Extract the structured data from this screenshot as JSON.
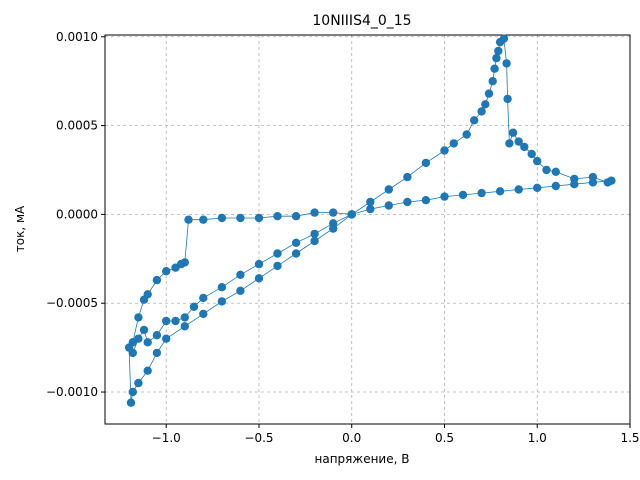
{
  "chart_data": {
    "type": "scatter",
    "title": "10NIIIS4_0_15",
    "xlabel": "напряжение, В",
    "ylabel": "ток, мА",
    "xlim": [
      -1.33,
      1.5
    ],
    "ylim": [
      -0.00118,
      0.00101
    ],
    "xticks": [
      -1.0,
      -0.5,
      0.0,
      0.5,
      1.0,
      1.5
    ],
    "xtick_labels": [
      "−1.0",
      "−0.5",
      "0.0",
      "0.5",
      "1.0",
      "1.5"
    ],
    "yticks": [
      -0.001,
      -0.0005,
      0.0,
      0.0005,
      0.001
    ],
    "ytick_labels": [
      "−0.0010",
      "−0.0005",
      "0.0000",
      "0.0005",
      "0.0010"
    ],
    "grid": true,
    "color": "#1f77b4",
    "marker": "circle with connecting line",
    "series": [
      {
        "values_xy": [
          [
            0.0,
            0.0
          ],
          [
            0.1,
            3e-05
          ],
          [
            0.2,
            5e-05
          ],
          [
            0.3,
            7e-05
          ],
          [
            0.4,
            8e-05
          ],
          [
            0.5,
            0.0001
          ],
          [
            0.6,
            0.00011
          ],
          [
            0.7,
            0.00012
          ],
          [
            0.8,
            0.00013
          ],
          [
            0.9,
            0.00014
          ],
          [
            1.0,
            0.00015
          ],
          [
            1.1,
            0.00016
          ],
          [
            1.2,
            0.00017
          ],
          [
            1.3,
            0.00018
          ],
          [
            1.4,
            0.00019
          ],
          [
            1.38,
            0.00018
          ],
          [
            1.3,
            0.00021
          ],
          [
            1.2,
            0.0002
          ],
          [
            1.1,
            0.00024
          ],
          [
            1.05,
            0.00025
          ],
          [
            1.0,
            0.0003
          ],
          [
            0.97,
            0.00034
          ],
          [
            0.93,
            0.00038
          ],
          [
            0.9,
            0.00041
          ],
          [
            0.87,
            0.00046
          ],
          [
            0.85,
            0.0004
          ],
          [
            0.84,
            0.00065
          ],
          [
            0.835,
            0.00085
          ],
          [
            0.82,
            0.00099
          ],
          [
            0.8,
            0.00097
          ],
          [
            0.79,
            0.00092
          ],
          [
            0.78,
            0.00088
          ],
          [
            0.77,
            0.00082
          ],
          [
            0.76,
            0.00075
          ],
          [
            0.74,
            0.00068
          ],
          [
            0.72,
            0.00062
          ],
          [
            0.7,
            0.00058
          ],
          [
            0.66,
            0.00053
          ],
          [
            0.62,
            0.00045
          ],
          [
            0.55,
            0.0004
          ],
          [
            0.5,
            0.00036
          ],
          [
            0.4,
            0.00029
          ],
          [
            0.3,
            0.00021
          ],
          [
            0.2,
            0.00014
          ],
          [
            0.1,
            7e-05
          ],
          [
            0.0,
            0.0
          ],
          [
            -0.1,
            -8e-05
          ],
          [
            -0.2,
            -0.00015
          ],
          [
            -0.3,
            -0.00022
          ],
          [
            -0.4,
            -0.00029
          ],
          [
            -0.5,
            -0.00036
          ],
          [
            -0.6,
            -0.00043
          ],
          [
            -0.7,
            -0.00049
          ],
          [
            -0.8,
            -0.00056
          ],
          [
            -0.9,
            -0.00063
          ],
          [
            -1.0,
            -0.0007
          ],
          [
            -1.05,
            -0.00078
          ],
          [
            -1.1,
            -0.00088
          ],
          [
            -1.15,
            -0.00095
          ],
          [
            -1.18,
            -0.001
          ],
          [
            -1.19,
            -0.00106
          ],
          [
            -1.2,
            -0.00075
          ],
          [
            -1.18,
            -0.00078
          ],
          [
            -1.15,
            -0.0007
          ],
          [
            -1.12,
            -0.00065
          ],
          [
            -1.1,
            -0.00072
          ],
          [
            -1.05,
            -0.00068
          ],
          [
            -1.0,
            -0.0006
          ],
          [
            -0.95,
            -0.0006
          ],
          [
            -0.9,
            -0.00058
          ],
          [
            -0.85,
            -0.00052
          ],
          [
            -0.8,
            -0.00047
          ],
          [
            -0.7,
            -0.00041
          ],
          [
            -0.6,
            -0.00034
          ],
          [
            -0.5,
            -0.00028
          ],
          [
            -0.4,
            -0.00022
          ],
          [
            -0.3,
            -0.00016
          ],
          [
            -0.2,
            -0.00011
          ],
          [
            -0.1,
            -5e-05
          ],
          [
            0.0,
            0.0
          ],
          [
            -0.1,
            1e-05
          ],
          [
            -0.2,
            1e-05
          ],
          [
            -0.3,
            -1e-05
          ],
          [
            -0.4,
            -1e-05
          ],
          [
            -0.5,
            -2e-05
          ],
          [
            -0.6,
            -2e-05
          ],
          [
            -0.7,
            -2e-05
          ],
          [
            -0.8,
            -3e-05
          ],
          [
            -0.88,
            -3e-05
          ],
          [
            -0.9,
            -0.00027
          ],
          [
            -0.92,
            -0.00028
          ],
          [
            -0.95,
            -0.0003
          ],
          [
            -1.0,
            -0.00032
          ],
          [
            -1.05,
            -0.00037
          ],
          [
            -1.1,
            -0.00045
          ],
          [
            -1.12,
            -0.00048
          ],
          [
            -1.15,
            -0.00058
          ],
          [
            -1.18,
            -0.00072
          ]
        ]
      }
    ]
  }
}
